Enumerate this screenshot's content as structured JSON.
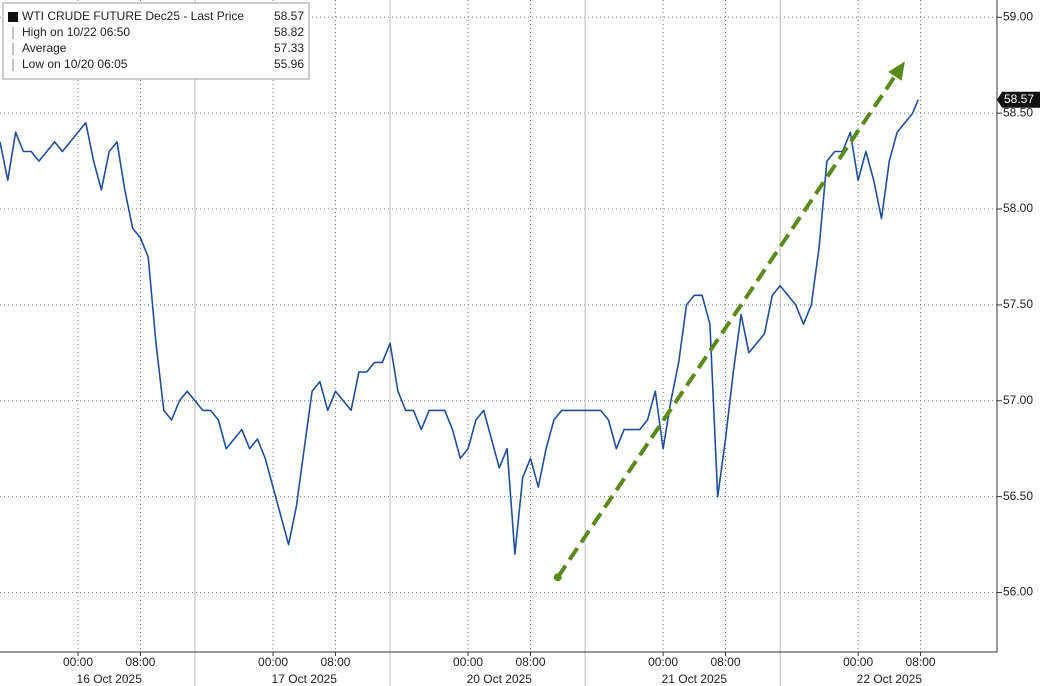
{
  "chart_data": {
    "type": "line",
    "legend": [
      {
        "label": "WTI CRUDE FUTURE Dec25 - Last Price",
        "value": 58.57
      },
      {
        "label": "High on 10/22 06:50",
        "value": 58.82
      },
      {
        "label": "Average",
        "value": 57.33
      },
      {
        "label": "Low on 10/20 06:05",
        "value": 55.96
      }
    ],
    "x": [
      0,
      1,
      2,
      3,
      4,
      5,
      6,
      7,
      8,
      9,
      10,
      11,
      12,
      13,
      14,
      15,
      16,
      17,
      18,
      19,
      20,
      21,
      22,
      23,
      24,
      25,
      26,
      27,
      28,
      29,
      30,
      31,
      32,
      33,
      34,
      35,
      36,
      37,
      38,
      39,
      40,
      41,
      42,
      43,
      44,
      45,
      46,
      47,
      48,
      49,
      50,
      51,
      52,
      53,
      54,
      55,
      56,
      57,
      58,
      59,
      60,
      61,
      62,
      63,
      64,
      65,
      66,
      67,
      68,
      69,
      70,
      71,
      72,
      73,
      74,
      75,
      76,
      77,
      78,
      79,
      80,
      81,
      82,
      83,
      84,
      85,
      86,
      87,
      88,
      89,
      90,
      91,
      92,
      93,
      94,
      95,
      96,
      97,
      98,
      99,
      100,
      101,
      102,
      103,
      104,
      105,
      106,
      107,
      108,
      109,
      110,
      111,
      112,
      113,
      114,
      115,
      116,
      117,
      117.7
    ],
    "series": [
      {
        "name": "WTI CRUDE FUTURE Dec25",
        "color": "#1f4e9c",
        "values": [
          58.35,
          58.15,
          58.4,
          58.3,
          58.3,
          58.25,
          58.3,
          58.35,
          58.3,
          58.35,
          58.4,
          58.45,
          58.25,
          58.1,
          58.3,
          58.35,
          58.1,
          57.9,
          57.85,
          57.75,
          57.3,
          56.95,
          56.9,
          57.0,
          57.05,
          57.0,
          56.95,
          56.95,
          56.9,
          56.75,
          56.8,
          56.85,
          56.75,
          56.8,
          56.7,
          56.55,
          56.4,
          56.25,
          56.45,
          56.75,
          57.05,
          57.1,
          56.95,
          57.05,
          57.0,
          56.95,
          57.15,
          57.15,
          57.2,
          57.2,
          57.3,
          57.05,
          56.95,
          56.95,
          56.85,
          56.95,
          56.95,
          56.95,
          56.85,
          56.7,
          56.75,
          56.9,
          56.95,
          56.8,
          56.65,
          56.75,
          56.2,
          56.6,
          56.7,
          56.55,
          56.75,
          56.9,
          56.95,
          56.95,
          56.95,
          56.95,
          56.95,
          56.95,
          56.9,
          56.75,
          56.85,
          56.85,
          56.85,
          56.9,
          57.05,
          56.75,
          57.0,
          57.2,
          57.5,
          57.55,
          57.55,
          57.4,
          56.5,
          56.8,
          57.15,
          57.45,
          57.25,
          57.3,
          57.35,
          57.55,
          57.6,
          57.55,
          57.5,
          57.4,
          57.5,
          57.8,
          58.25,
          58.3,
          58.3,
          58.4,
          58.15,
          58.3,
          58.15,
          57.95,
          58.25,
          58.4,
          58.45,
          58.5,
          58.57
        ]
      }
    ],
    "xlim": [
      0,
      127.8
    ],
    "xticks": [
      {
        "value": 10,
        "label": "00:00"
      },
      {
        "value": 18,
        "label": "08:00"
      },
      {
        "value": 35,
        "label": "00:00"
      },
      {
        "value": 43,
        "label": "08:00"
      },
      {
        "value": 60,
        "label": "00:00"
      },
      {
        "value": 68,
        "label": "08:00"
      },
      {
        "value": 85,
        "label": "00:00"
      },
      {
        "value": 93,
        "label": "08:00"
      },
      {
        "value": 110,
        "label": "00:00"
      },
      {
        "value": 118,
        "label": "08:00"
      }
    ],
    "date_labels": [
      {
        "value": 14,
        "label": "16 Oct 2025"
      },
      {
        "value": 39,
        "label": "17 Oct 2025"
      },
      {
        "value": 64,
        "label": "20 Oct 2025"
      },
      {
        "value": 89,
        "label": "21 Oct 2025"
      },
      {
        "value": 114,
        "label": "22 Oct 2025"
      }
    ],
    "day_breaks": [
      25,
      50,
      75,
      100
    ],
    "ylim": [
      55.69,
      59.09
    ],
    "yticks": [
      {
        "value": 56,
        "label": "56.00"
      },
      {
        "value": 56.5,
        "label": "56.50"
      },
      {
        "value": 57,
        "label": "57.00"
      },
      {
        "value": 57.5,
        "label": "57.50"
      },
      {
        "value": 58,
        "label": "58.00"
      },
      {
        "value": 58.5,
        "label": "58.50"
      },
      {
        "value": 59,
        "label": "59.00"
      }
    ],
    "grid": true,
    "trend_arrow": {
      "x": [
        71.5,
        116
      ],
      "y": [
        56.08,
        58.77
      ],
      "color": "#5a8a1a"
    }
  }
}
